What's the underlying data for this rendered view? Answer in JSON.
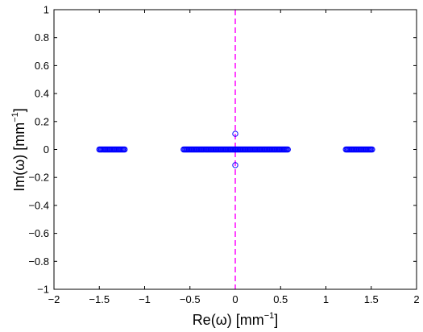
{
  "chart_data": {
    "type": "scatter",
    "title": "",
    "xlabel": {
      "main": "Re(ω) [mm",
      "sup": "−1",
      "close": "]"
    },
    "ylabel": {
      "main": "Im(ω) [mm",
      "sup": "−1",
      "close": "]"
    },
    "xlim": [
      -2,
      2
    ],
    "ylim": [
      -1,
      1
    ],
    "x_ticks": [
      {
        "value": -2,
        "label": "−2"
      },
      {
        "value": -1.5,
        "label": "−1.5"
      },
      {
        "value": -1,
        "label": "−1"
      },
      {
        "value": -0.5,
        "label": "−0.5"
      },
      {
        "value": 0,
        "label": "0"
      },
      {
        "value": 0.5,
        "label": "0.5"
      },
      {
        "value": 1,
        "label": "1"
      },
      {
        "value": 1.5,
        "label": "1.5"
      },
      {
        "value": 2,
        "label": "2"
      }
    ],
    "y_ticks": [
      {
        "value": -1,
        "label": "−1"
      },
      {
        "value": -0.8,
        "label": "−0.8"
      },
      {
        "value": -0.6,
        "label": "−0.6"
      },
      {
        "value": -0.4,
        "label": "−0.4"
      },
      {
        "value": -0.2,
        "label": "−0.2"
      },
      {
        "value": 0,
        "label": "0"
      },
      {
        "value": 0.2,
        "label": "0.2"
      },
      {
        "value": 0.4,
        "label": "0.4"
      },
      {
        "value": 0.6,
        "label": "0.6"
      },
      {
        "value": 0.8,
        "label": "0.8"
      },
      {
        "value": 1,
        "label": "1"
      }
    ],
    "grid": false,
    "series": [
      {
        "marker": "circle-open",
        "color": "#0000ff",
        "segments": [
          {
            "x_start": -1.5,
            "x_end": -1.22,
            "y": 0
          },
          {
            "x_start": -0.57,
            "x_end": 0.58,
            "y": 0
          },
          {
            "x_start": 1.22,
            "x_end": 1.51,
            "y": 0
          }
        ],
        "points": [
          {
            "x": 0,
            "y": 0.112
          },
          {
            "x": 0,
            "y": -0.112
          }
        ]
      }
    ],
    "reference_line": {
      "x": 0,
      "color": "#ff44ff",
      "style": "dashed"
    }
  }
}
